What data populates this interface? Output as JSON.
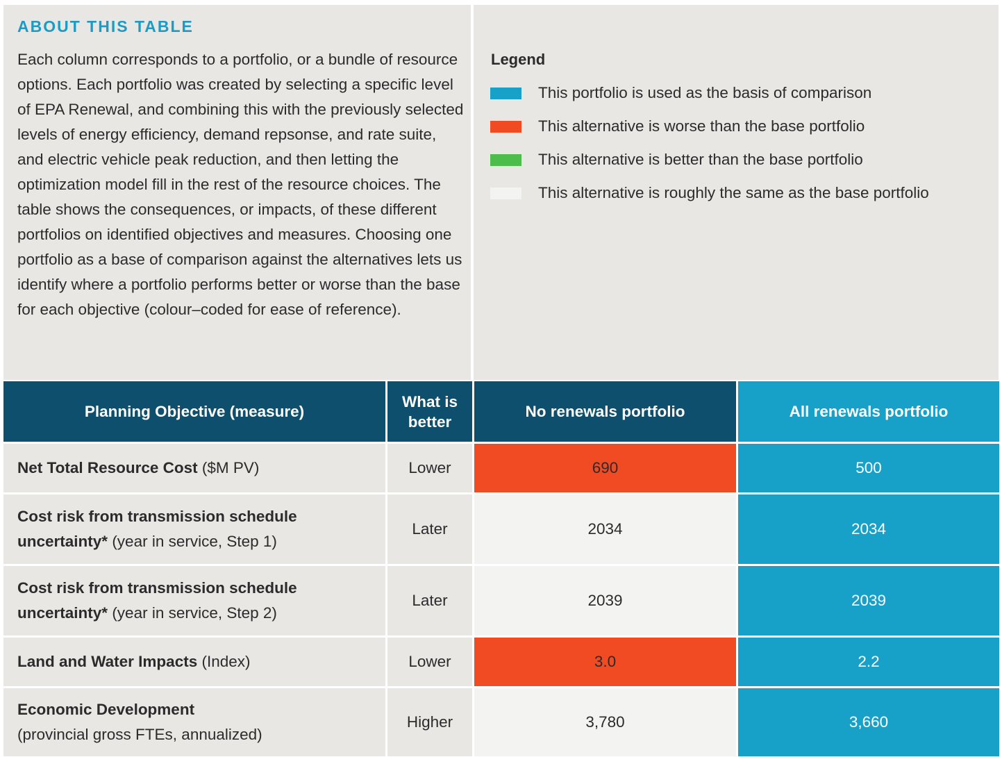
{
  "about": {
    "title": "ABOUT THIS TABLE",
    "text": "Each column corresponds to a portfolio, or a bundle of resource options. Each portfolio was created by selecting a specific level of EPA Renewal, and combining this with the previously selected levels of energy efficiency, demand repsonse, and rate suite, and electric vehicle peak reduction, and then letting the optimization model fill in the rest of the resource choices. The table shows the consequences, or impacts, of these different portfolios on identified objectives and measures. Choosing one portfolio as a base of comparison against the alternatives lets us identify where a portfolio performs better or worse than the base for each objective (colour–coded for ease of reference)."
  },
  "legend": {
    "title": "Legend",
    "items": [
      {
        "color": "#17a0c8",
        "label": "This portfolio is used as the basis of comparison"
      },
      {
        "color": "#f04b23",
        "label": "This alternative is worse than the base portfolio"
      },
      {
        "color": "#4cbc4a",
        "label": "This alternative is better than the base portfolio"
      },
      {
        "color": "#f3f3f1",
        "label": "This alternative is roughly the same as the base portfolio"
      }
    ]
  },
  "table": {
    "header": [
      "Planning Objective (measure)",
      "What is better",
      "No renewals portfolio",
      "All renewals portfolio"
    ],
    "header_colors": [
      "#0e4f6e",
      "#0e4f6e",
      "#0e4f6e",
      "#17a0c8"
    ],
    "rows": [
      {
        "name": "Net Total Resource Cost",
        "measure": "($M PV)",
        "better": "Lower",
        "values": [
          "690",
          "500"
        ],
        "colors": [
          "#f04b23",
          "#17a0c8"
        ]
      },
      {
        "name": "Cost risk from transmission schedule uncertainty*",
        "measure": "(year in service, Step 1)",
        "better": "Later",
        "values": [
          "2034",
          "2034"
        ],
        "colors": [
          "#f3f3f1",
          "#17a0c8"
        ]
      },
      {
        "name": "Cost risk from transmission schedule uncertainty*",
        "measure": "(year in service, Step 2)",
        "better": "Later",
        "values": [
          "2039",
          "2039"
        ],
        "colors": [
          "#f3f3f1",
          "#17a0c8"
        ]
      },
      {
        "name": "Land and Water Impacts",
        "measure": "(Index)",
        "better": "Lower",
        "values": [
          "3.0",
          "2.2"
        ],
        "colors": [
          "#f04b23",
          "#17a0c8"
        ]
      },
      {
        "name": "Economic Development",
        "measure": "(provincial gross FTEs, annualized)",
        "better": "Higher",
        "values": [
          "3,780",
          "3,660"
        ],
        "colors": [
          "#f3f3f1",
          "#17a0c8"
        ]
      }
    ]
  }
}
